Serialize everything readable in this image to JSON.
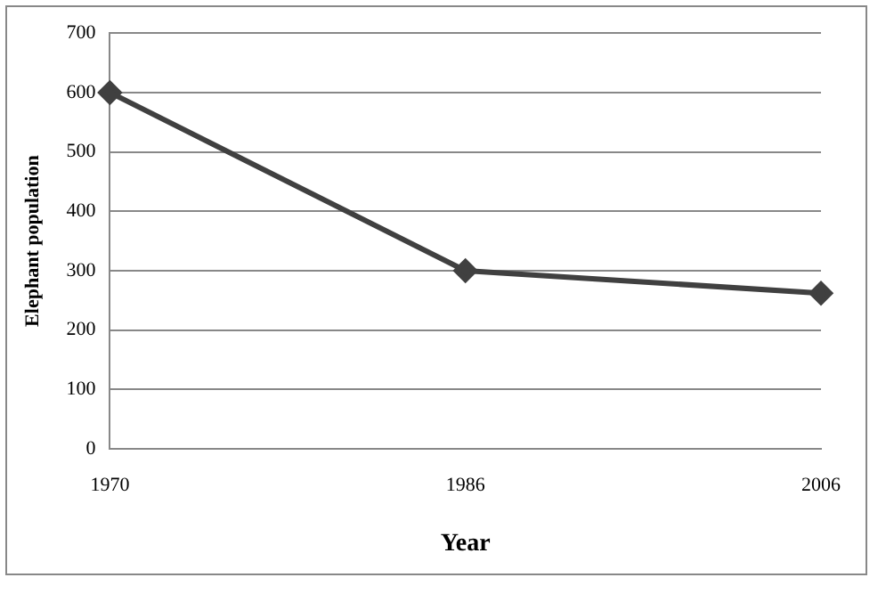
{
  "chart_data": {
    "type": "line",
    "xlabel": "Year",
    "ylabel": "Elephant population",
    "categories": [
      "1970",
      "1986",
      "2006"
    ],
    "series": [
      {
        "color": "#404040",
        "values": [
          600,
          300,
          262
        ]
      }
    ],
    "ylim": [
      0,
      700
    ],
    "yticks": [
      0,
      100,
      200,
      300,
      400,
      500,
      600,
      700
    ],
    "grid": "y",
    "legend": false,
    "marker": "diamond",
    "line_style": "solid"
  }
}
